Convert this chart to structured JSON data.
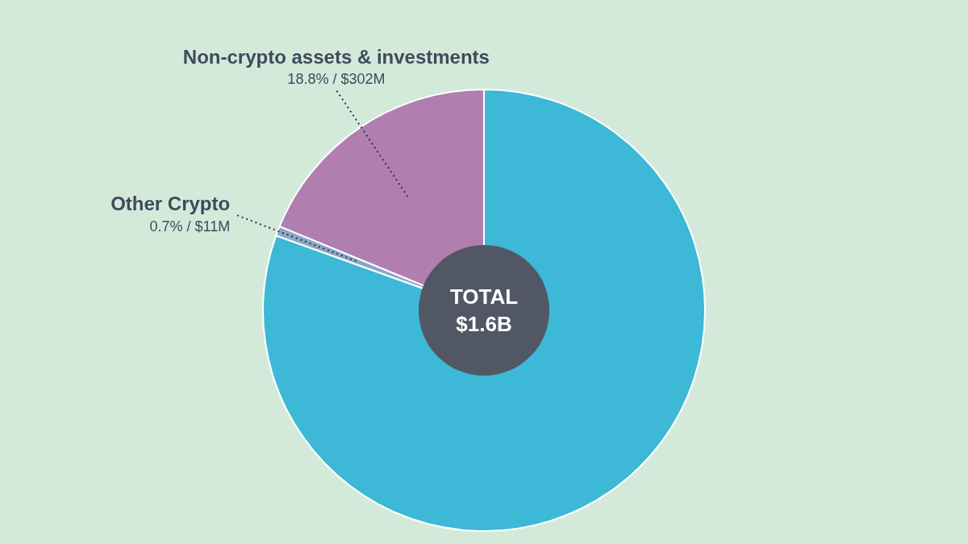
{
  "chart_data": {
    "type": "donut",
    "categories": [
      null,
      "Other Crypto",
      "Non-crypto assets & investments"
    ],
    "values": [
      80.5,
      0.7,
      18.8
    ],
    "colors": [
      "#3db8d6",
      "#8aa7c6",
      "#b07fb0"
    ],
    "value_labels": [
      null,
      "0.7% / $11M",
      "18.8% / $302M"
    ],
    "annotations": [
      "TOTAL $1.6B"
    ],
    "legend": false
  }
}
